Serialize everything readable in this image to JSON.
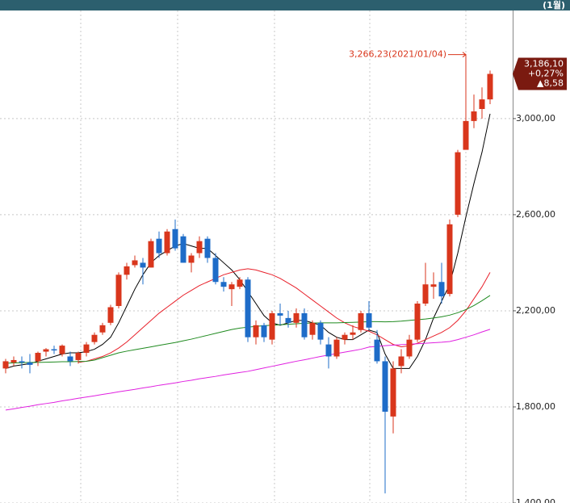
{
  "chart_data": {
    "type": "candlestick",
    "period": "(1월)",
    "open": [
      1960,
      1985,
      1990,
      1985,
      1990,
      2030,
      2040,
      2020,
      2010,
      1995,
      2025,
      2070,
      2110,
      2150,
      2220,
      2350,
      2390,
      2400,
      2380,
      2500,
      2440,
      2540,
      2510,
      2400,
      2440,
      2500,
      2420,
      2320,
      2290,
      2300,
      2330,
      2090,
      2140,
      2080,
      2190,
      2170,
      2150,
      2190,
      2100,
      2150,
      2060,
      2010,
      2080,
      2100,
      2120,
      2190,
      2080,
      1990,
      1760,
      1970,
      2010,
      2080,
      2230,
      2300,
      2320,
      2270,
      2600,
      2870,
      2990,
      3040,
      3080
    ],
    "high": [
      2000,
      2010,
      2010,
      2020,
      2030,
      2045,
      2055,
      2060,
      2030,
      2030,
      2070,
      2110,
      2150,
      2225,
      2360,
      2400,
      2430,
      2420,
      2500,
      2530,
      2540,
      2580,
      2520,
      2440,
      2510,
      2510,
      2440,
      2340,
      2320,
      2340,
      2340,
      2160,
      2150,
      2200,
      2230,
      2200,
      2210,
      2210,
      2160,
      2160,
      2090,
      2090,
      2110,
      2140,
      2200,
      2240,
      2120,
      2010,
      1990,
      2040,
      2100,
      2240,
      2400,
      2360,
      2400,
      2580,
      2870,
      3266.23,
      3100,
      3130,
      3200
    ],
    "low": [
      1940,
      1970,
      1960,
      1940,
      1970,
      2010,
      2020,
      2010,
      1970,
      1980,
      2010,
      2060,
      2100,
      2140,
      2210,
      2330,
      2380,
      2310,
      2380,
      2420,
      2430,
      2450,
      2400,
      2360,
      2420,
      2400,
      2310,
      2280,
      2220,
      2290,
      2070,
      2060,
      2070,
      2060,
      2140,
      2130,
      2130,
      2080,
      2080,
      2060,
      1960,
      2000,
      2060,
      2080,
      2110,
      2120,
      1980,
      1440,
      1690,
      1940,
      2000,
      2070,
      2220,
      2250,
      2230,
      2260,
      2590,
      2880,
      2960,
      3000,
      3060
    ],
    "close": [
      1990,
      1995,
      1985,
      1975,
      2025,
      2040,
      2035,
      2055,
      1990,
      2025,
      2060,
      2100,
      2140,
      2215,
      2350,
      2385,
      2410,
      2380,
      2490,
      2440,
      2530,
      2460,
      2400,
      2430,
      2490,
      2420,
      2320,
      2300,
      2310,
      2330,
      2090,
      2140,
      2090,
      2190,
      2180,
      2150,
      2190,
      2090,
      2150,
      2080,
      2010,
      2080,
      2100,
      2110,
      2190,
      2130,
      1990,
      1780,
      1960,
      2010,
      2080,
      2230,
      2310,
      2310,
      2260,
      2560,
      2860,
      2990,
      3030,
      3080,
      3186.1
    ],
    "up_color": "#d9361c",
    "down_color": "#1e6cc8",
    "lines": [
      {
        "color": "#000000",
        "values": [
          1960,
          1970,
          1975,
          1980,
          1990,
          2000,
          2010,
          2020,
          2025,
          2025,
          2030,
          2040,
          2060,
          2090,
          2150,
          2220,
          2290,
          2350,
          2400,
          2430,
          2450,
          2470,
          2480,
          2470,
          2460,
          2460,
          2430,
          2400,
          2370,
          2330,
          2280,
          2230,
          2180,
          2150,
          2140,
          2150,
          2160,
          2160,
          2150,
          2140,
          2110,
          2090,
          2080,
          2080,
          2100,
          2120,
          2110,
          2020,
          1960,
          1960,
          1960,
          2010,
          2080,
          2170,
          2240,
          2310,
          2440,
          2590,
          2730,
          2860,
          3020
        ]
      },
      {
        "color": "#e8202a",
        "values": [
          null,
          null,
          null,
          null,
          null,
          null,
          null,
          null,
          null,
          1985,
          1990,
          2000,
          2010,
          2025,
          2045,
          2070,
          2100,
          2130,
          2160,
          2190,
          2215,
          2240,
          2265,
          2285,
          2305,
          2320,
          2335,
          2350,
          2360,
          2370,
          2375,
          2370,
          2360,
          2350,
          2335,
          2315,
          2295,
          2270,
          2245,
          2220,
          2195,
          2170,
          2150,
          2135,
          2125,
          2115,
          2100,
          2080,
          2060,
          2050,
          2055,
          2065,
          2080,
          2095,
          2110,
          2130,
          2160,
          2200,
          2250,
          2300,
          2360
        ]
      },
      {
        "color": "#1f8a1f",
        "values": [
          1982,
          1983,
          1984,
          1985,
          1985,
          1986,
          1987,
          1988,
          1988,
          1989,
          1990,
          1995,
          2005,
          2015,
          2025,
          2032,
          2038,
          2044,
          2050,
          2056,
          2062,
          2068,
          2075,
          2082,
          2090,
          2098,
          2106,
          2114,
          2122,
          2128,
          2132,
          2135,
          2138,
          2140,
          2142,
          2144,
          2146,
          2148,
          2149,
          2150,
          2150,
          2150,
          2151,
          2152,
          2153,
          2155,
          2155,
          2154,
          2155,
          2157,
          2160,
          2163,
          2166,
          2170,
          2175,
          2182,
          2192,
          2205,
          2222,
          2242,
          2264
        ]
      },
      {
        "color": "#e020e0",
        "values": [
          1787,
          1792,
          1798,
          1803,
          1809,
          1814,
          1819,
          1825,
          1830,
          1836,
          1841,
          1846,
          1852,
          1857,
          1863,
          1868,
          1873,
          1879,
          1884,
          1890,
          1895,
          1900,
          1906,
          1911,
          1917,
          1922,
          1927,
          1933,
          1938,
          1943,
          1948,
          1955,
          1962,
          1969,
          1976,
          1983,
          1990,
          1996,
          2003,
          2010,
          2016,
          2022,
          2028,
          2034,
          2040,
          2049,
          2052,
          2055,
          2057,
          2059,
          2061,
          2063,
          2065,
          2067,
          2069,
          2072,
          2080,
          2090,
          2100,
          2112,
          2123
        ]
      }
    ],
    "annotation": {
      "value": 3266.23,
      "label": "3,266,23(2021/01/04)"
    },
    "last": {
      "value": 3186.1,
      "label": "3,186,10"
    },
    "change_pct": {
      "value": 0.27,
      "label": "+0,27%"
    },
    "change": {
      "value": 8.58,
      "label": "▲8,58"
    },
    "ylim": [
      1400,
      3450
    ],
    "yticks": [
      {
        "value": 1400,
        "label": "1,400,00"
      },
      {
        "value": 1800,
        "label": "1,800,00"
      },
      {
        "value": 2200,
        "label": "2,200,00"
      },
      {
        "value": 2600,
        "label": "2,600,00"
      },
      {
        "value": 3000,
        "label": "3,000,00"
      }
    ],
    "grid": true
  }
}
